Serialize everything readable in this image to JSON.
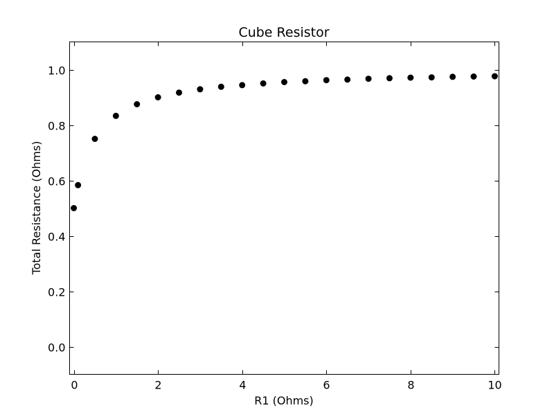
{
  "chart_data": {
    "type": "scatter",
    "title": "Cube Resistor",
    "xlabel": "R1 (Ohms)",
    "ylabel": "Total Resistance (Ohms)",
    "xlim": [
      -0.1,
      10.1
    ],
    "ylim": [
      -0.1,
      1.1
    ],
    "xticks": [
      0,
      2,
      4,
      6,
      8,
      10
    ],
    "xtick_labels": [
      "0",
      "2",
      "4",
      "6",
      "8",
      "10"
    ],
    "yticks": [
      0.0,
      0.2,
      0.4,
      0.6,
      0.8,
      1.0
    ],
    "ytick_labels": [
      "0.0",
      "0.2",
      "0.4",
      "0.6",
      "0.8",
      "1.0"
    ],
    "grid": false,
    "marker_color": "#000000",
    "series": [
      {
        "x": [
          0,
          0.1,
          0.5,
          1,
          1.5,
          2,
          2.5,
          3,
          3.5,
          4,
          4.5,
          5,
          5.5,
          6,
          6.5,
          7,
          7.5,
          8,
          8.5,
          9,
          9.5,
          10
        ],
        "y": [
          0.5,
          0.583,
          0.75,
          0.833,
          0.875,
          0.9,
          0.917,
          0.929,
          0.938,
          0.944,
          0.95,
          0.955,
          0.958,
          0.962,
          0.964,
          0.967,
          0.969,
          0.971,
          0.972,
          0.974,
          0.975,
          0.976
        ]
      }
    ]
  }
}
